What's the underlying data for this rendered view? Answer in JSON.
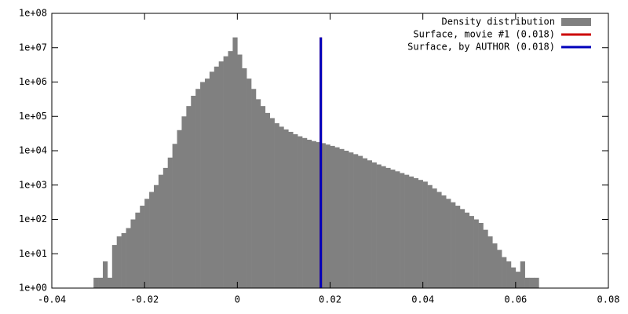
{
  "chart_data": {
    "type": "histogram",
    "log_y": true,
    "bins": [
      -0.031,
      -0.03,
      -0.029,
      -0.028,
      -0.027,
      -0.026,
      -0.025,
      -0.024,
      -0.023,
      -0.022,
      -0.021,
      -0.02,
      -0.019,
      -0.018,
      -0.017,
      -0.016,
      -0.015,
      -0.014,
      -0.013,
      -0.012,
      -0.011,
      -0.01,
      -0.009,
      -0.008,
      -0.007,
      -0.006,
      -0.005,
      -0.004,
      -0.003,
      -0.002,
      -0.001,
      0,
      0.001,
      0.002,
      0.003,
      0.004,
      0.005,
      0.006,
      0.007,
      0.008,
      0.009,
      0.01,
      0.011,
      0.012,
      0.013,
      0.014,
      0.015,
      0.016,
      0.017,
      0.018,
      0.019,
      0.02,
      0.021,
      0.022,
      0.023,
      0.024,
      0.025,
      0.026,
      0.027,
      0.028,
      0.029,
      0.03,
      0.031,
      0.032,
      0.033,
      0.034,
      0.035,
      0.036,
      0.037,
      0.038,
      0.039,
      0.04,
      0.041,
      0.042,
      0.043,
      0.044,
      0.045,
      0.046,
      0.047,
      0.048,
      0.049,
      0.05,
      0.051,
      0.052,
      0.053,
      0.054,
      0.055,
      0.056,
      0.057,
      0.058,
      0.059,
      0.06,
      0.061,
      0.062,
      0.063,
      0.064,
      0.065
    ],
    "series": [
      {
        "name": "Density distribution",
        "color": "#808080",
        "values": [
          2,
          2,
          6,
          2,
          18,
          32,
          40,
          56,
          100,
          158,
          251,
          398,
          631,
          1000,
          1995,
          3162,
          6310,
          15849,
          39811,
          100000,
          199526,
          398107,
          630957,
          1000000,
          1258925,
          1995262,
          2818383,
          3981072,
          5623413,
          7943282,
          19952623,
          6309573,
          2511886,
          1258925,
          630957,
          316228,
          199526,
          125893,
          89125,
          63096,
          50119,
          41687,
          35481,
          30200,
          26303,
          23442,
          20893,
          19055,
          17783,
          16596,
          15136,
          13804,
          12589,
          11220,
          10000,
          8913,
          7943,
          7079,
          6026,
          5248,
          4571,
          3981,
          3548,
          3162,
          2818,
          2512,
          2239,
          1995,
          1778,
          1585,
          1413,
          1259,
          1000,
          794,
          631,
          501,
          398,
          316,
          251,
          200,
          158,
          126,
          100,
          79,
          50,
          32,
          20,
          13,
          8,
          6,
          4,
          3,
          6,
          2,
          2,
          2
        ]
      }
    ],
    "lines": [
      {
        "name": "Surface, movie #1 (0.018)",
        "color": "#cc0000",
        "x": 0.018,
        "y": [
          1,
          20000000
        ]
      },
      {
        "name": "Surface, by AUTHOR (0.018)",
        "color": "#0000bb",
        "x": 0.018,
        "y": [
          1,
          20000000
        ]
      }
    ],
    "legend": "top-right",
    "xlim": [
      -0.04,
      0.08
    ],
    "xticks": [
      -0.04,
      -0.02,
      0,
      0.02,
      0.04,
      0.06,
      0.08
    ],
    "ylim": [
      1,
      100000000
    ],
    "yticks": [
      {
        "value": 1,
        "label": "1e+00"
      },
      {
        "value": 10,
        "label": "1e+01"
      },
      {
        "value": 100,
        "label": "1e+02"
      },
      {
        "value": 1000,
        "label": "1e+03"
      },
      {
        "value": 10000,
        "label": "1e+04"
      },
      {
        "value": 100000,
        "label": "1e+05"
      },
      {
        "value": 1000000,
        "label": "1e+06"
      },
      {
        "value": 10000000,
        "label": "1e+07"
      },
      {
        "value": 100000000,
        "label": "1e+08"
      }
    ]
  }
}
